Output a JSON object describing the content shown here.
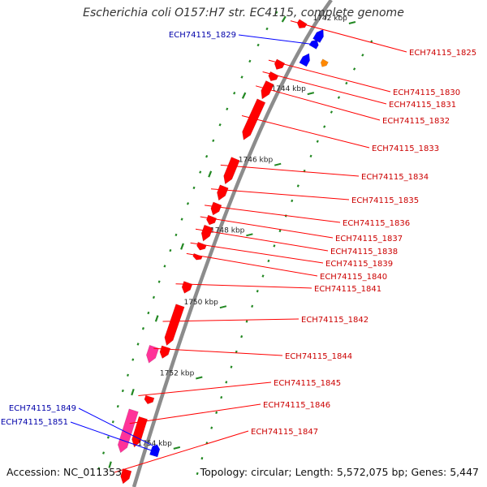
{
  "title": "Escherichia coli O157:H7 str. EC4115, complete genome",
  "footer": {
    "accession": "Accession: NC_011353",
    "topology": "Topology: circular; Length: 5,572,075 bp; Genes: 5,447"
  },
  "colors": {
    "backbone": "#8c8c8c",
    "forward_gene": "#ff0000",
    "forward_label": "#cc0000",
    "reverse_gene": "#0000ff",
    "reverse_label": "#0000aa",
    "rna_gene": "#ff3399",
    "other_gene": "#ff8800",
    "tick": "#228822"
  },
  "scale_labels": [
    "1742 kbp",
    "1744 kbp",
    "1746 kbp",
    "1748 kbp",
    "1750 kbp",
    "1752 kbp",
    "1754 kbp"
  ],
  "forward_labels": [
    "ECH74115_1825",
    "ECH74115_1830",
    "ECH74115_1831",
    "ECH74115_1832",
    "ECH74115_1833",
    "ECH74115_1834",
    "ECH74115_1835",
    "ECH74115_1836",
    "ECH74115_1837",
    "ECH74115_1838",
    "ECH74115_1839",
    "ECH74115_1840",
    "ECH74115_1841",
    "ECH74115_1842",
    "ECH74115_1844",
    "ECH74115_1845",
    "ECH74115_1846",
    "ECH74115_1847"
  ],
  "reverse_labels": [
    "ECH74115_1829",
    "ECH74115_1849",
    "ECH74115_1851"
  ]
}
